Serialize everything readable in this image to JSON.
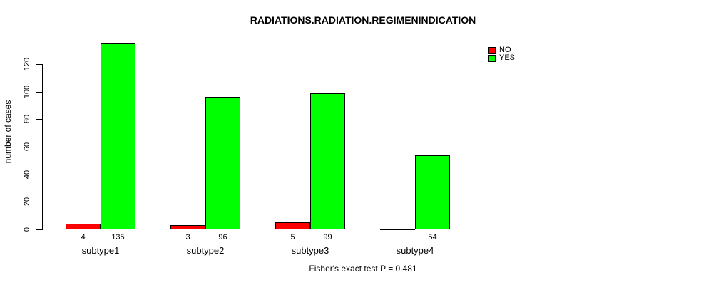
{
  "title": "RADIATIONS.RADIATION.REGIMENINDICATION",
  "caption": "Fisher's exact test P = 0.481",
  "legend": {
    "items": [
      {
        "label": "NO",
        "color": "#ff0000"
      },
      {
        "label": "YES",
        "color": "#00ff00"
      }
    ]
  },
  "chart_data": {
    "type": "bar",
    "title": "RADIATIONS.RADIATION.REGIMENINDICATION",
    "categories": [
      "subtype1",
      "subtype2",
      "subtype3",
      "subtype4"
    ],
    "series": [
      {
        "name": "NO",
        "color": "#ff0000",
        "values": [
          4,
          3,
          5,
          0
        ]
      },
      {
        "name": "YES",
        "color": "#00ff00",
        "values": [
          135,
          96,
          99,
          54
        ]
      }
    ],
    "bar_value_labels": [
      [
        "4",
        "135"
      ],
      [
        "3",
        "96"
      ],
      [
        "5",
        "99"
      ],
      [
        "",
        "54"
      ]
    ],
    "xlabel": "",
    "ylabel": "number of cases",
    "yticks": [
      0,
      20,
      40,
      60,
      80,
      100,
      120
    ],
    "ylim": [
      0,
      135
    ],
    "legend_position": "top-right",
    "grid": false,
    "annotation": "Fisher's exact test P = 0.481"
  }
}
